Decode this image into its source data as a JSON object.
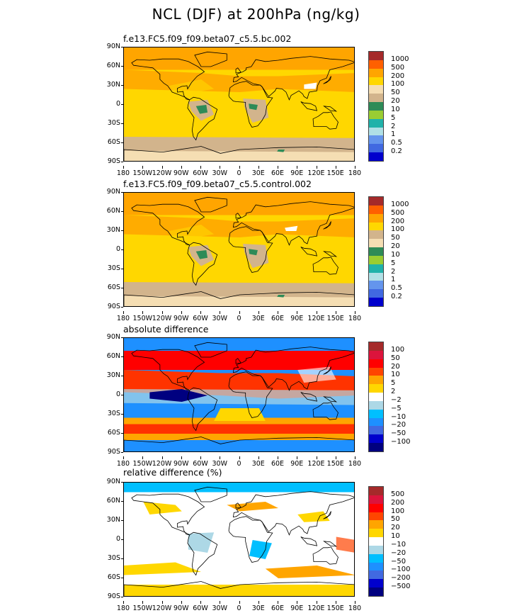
{
  "title": "NCL (DJF) at 200hPa (ng/kg)",
  "chart_data": [
    {
      "type": "heatmap",
      "subtitle": "f.e13.FC5.f09_f09.beta07_c5.5.bc.002",
      "x_ticks": [
        "180",
        "150W",
        "120W",
        "90W",
        "60W",
        "30W",
        "0",
        "30E",
        "60E",
        "90E",
        "120E",
        "150E",
        "180"
      ],
      "y_ticks": [
        "90N",
        "60N",
        "30N",
        "0",
        "30S",
        "60S",
        "90S"
      ],
      "xlim": [
        -180,
        180
      ],
      "ylim": [
        -90,
        90
      ],
      "contour_levels": [
        "1000",
        "500",
        "200",
        "100",
        "50",
        "20",
        "10",
        "5",
        "2",
        "1",
        "0.5",
        "0.2"
      ],
      "colors": [
        "#a52a2a",
        "#ff6000",
        "#ffa500",
        "#ffd700",
        "#f5deb3",
        "#d2b48c",
        "#2e8b57",
        "#9acd32",
        "#20b2aa",
        "#b0e0e6",
        "#6495ed",
        "#4169e1",
        "#0000cd"
      ],
      "field": "base"
    },
    {
      "type": "heatmap",
      "subtitle": "f.e13.FC5.f09_f09.beta07_c5.5.control.002",
      "x_ticks": [
        "180",
        "150W",
        "120W",
        "90W",
        "60W",
        "30W",
        "0",
        "30E",
        "60E",
        "90E",
        "120E",
        "150E",
        "180"
      ],
      "y_ticks": [
        "90N",
        "60N",
        "30N",
        "0",
        "30S",
        "60S",
        "90S"
      ],
      "xlim": [
        -180,
        180
      ],
      "ylim": [
        -90,
        90
      ],
      "contour_levels": [
        "1000",
        "500",
        "200",
        "100",
        "50",
        "20",
        "10",
        "5",
        "2",
        "1",
        "0.5",
        "0.2"
      ],
      "colors": [
        "#a52a2a",
        "#ff6000",
        "#ffa500",
        "#ffd700",
        "#d2b48c",
        "#f5deb3",
        "#2e8b57",
        "#9acd32",
        "#20b2aa",
        "#b0e0e6",
        "#6495ed",
        "#4169e1",
        "#0000cd"
      ],
      "field": "control"
    },
    {
      "type": "heatmap",
      "subtitle": "absolute difference",
      "x_ticks": [
        "180",
        "150W",
        "120W",
        "90W",
        "60W",
        "30W",
        "0",
        "30E",
        "60E",
        "90E",
        "120E",
        "150E",
        "180"
      ],
      "y_ticks": [
        "90N",
        "60N",
        "30N",
        "0",
        "30S",
        "60S",
        "90S"
      ],
      "xlim": [
        -180,
        180
      ],
      "ylim": [
        -90,
        90
      ],
      "contour_levels": [
        "100",
        "50",
        "20",
        "10",
        "5",
        "2",
        "−2",
        "−5",
        "−10",
        "−20",
        "−50",
        "−100"
      ],
      "colors": [
        "#a52a2a",
        "#dc143c",
        "#ff0000",
        "#ff4500",
        "#ffa500",
        "#ffd700",
        "#ffffff",
        "#add8e6",
        "#00bfff",
        "#1e90ff",
        "#4169e1",
        "#0000cd",
        "#000080"
      ],
      "field": "absdiff"
    },
    {
      "type": "heatmap",
      "subtitle": "relative difference (%)",
      "x_ticks": [
        "180",
        "150W",
        "120W",
        "90W",
        "60W",
        "30W",
        "0",
        "30E",
        "60E",
        "90E",
        "120E",
        "150E",
        "180"
      ],
      "y_ticks": [
        "90N",
        "60N",
        "30N",
        "0",
        "30S",
        "60S",
        "90S"
      ],
      "xlim": [
        -180,
        180
      ],
      "ylim": [
        -90,
        90
      ],
      "contour_levels": [
        "500",
        "200",
        "100",
        "50",
        "20",
        "10",
        "−10",
        "−20",
        "−50",
        "−100",
        "−200",
        "−500"
      ],
      "colors": [
        "#a52a2a",
        "#dc143c",
        "#ff0000",
        "#ff4500",
        "#ffa500",
        "#ffd700",
        "#ffffff",
        "#add8e6",
        "#00bfff",
        "#1e90ff",
        "#4169e1",
        "#0000cd",
        "#000080"
      ],
      "field": "reldiff"
    }
  ]
}
